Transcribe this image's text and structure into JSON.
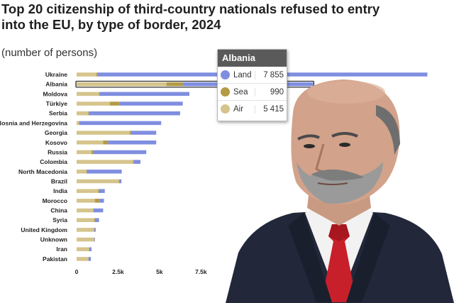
{
  "title": "Top 20 citizenship of third-country nationals refused to entry into the EU, by type of border, 2024",
  "subtitle": "(number of persons)",
  "colors": {
    "land": "#7f8ee0",
    "sea": "#b39a45",
    "air": "#d5c48c"
  },
  "tooltip": {
    "country": "Albania",
    "rows": [
      {
        "label": "Land",
        "value": "7 855",
        "color": "#7f8ee0"
      },
      {
        "label": "Sea",
        "value": "990",
        "color": "#b39a45"
      },
      {
        "label": "Air",
        "value": "5 415",
        "color": "#d5c48c"
      }
    ]
  },
  "chart_data": {
    "type": "bar",
    "orientation": "horizontal",
    "stacked": true,
    "categories": [
      "Ukraine",
      "Albania",
      "Moldova",
      "Türkiye",
      "Serbia",
      "Bosnia and Herzegovina",
      "Georgia",
      "Kosovo",
      "Russia",
      "Colombia",
      "North Macedonia",
      "Brazil",
      "India",
      "Morocco",
      "China",
      "Syria",
      "United Kingdom",
      "Unknown",
      "Iran",
      "Pakistan"
    ],
    "series": [
      {
        "name": "Air",
        "values": [
          1200,
          5415,
          1350,
          2000,
          700,
          150,
          3200,
          1600,
          900,
          3400,
          600,
          2550,
          1300,
          1100,
          1000,
          1050,
          1050,
          1050,
          750,
          700
        ]
      },
      {
        "name": "Sea",
        "values": [
          50,
          990,
          50,
          600,
          40,
          10,
          80,
          300,
          100,
          50,
          20,
          20,
          50,
          300,
          20,
          50,
          20,
          20,
          20,
          20
        ]
      },
      {
        "name": "Land",
        "values": [
          19900,
          7855,
          5400,
          3800,
          5500,
          4940,
          1520,
          2900,
          3200,
          400,
          2100,
          130,
          350,
          250,
          580,
          250,
          80,
          30,
          130,
          140
        ]
      }
    ],
    "x_ticks": [
      "0",
      "2.5k",
      "5k",
      "7.5k"
    ],
    "xlim": [
      0,
      21000
    ]
  },
  "photo": {
    "description": "photo-of-man-in-suit-with-red-tie"
  }
}
